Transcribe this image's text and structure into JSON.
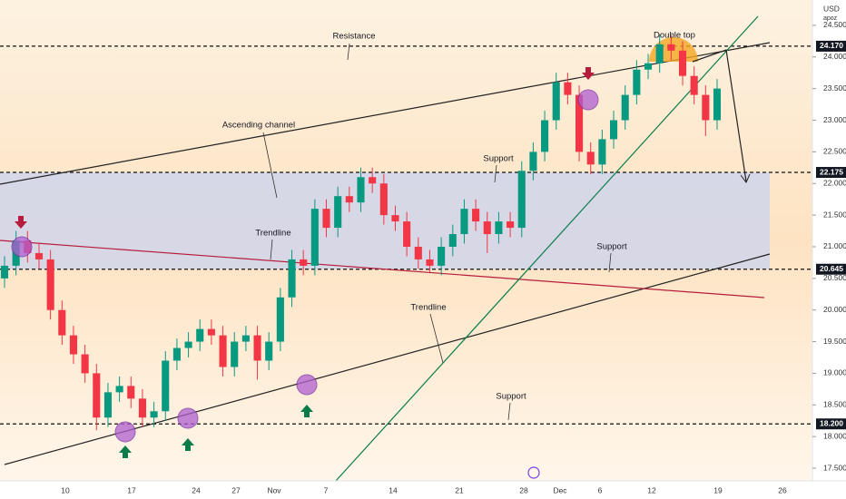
{
  "chart_data": {
    "type": "candlestick",
    "currency": "USD",
    "author": "apoz",
    "up_color": "#089981",
    "down_color": "#f23645",
    "ylim": [
      17.3,
      24.9
    ],
    "yticks": [
      {
        "value": 17.5,
        "label": "17.500"
      },
      {
        "value": 18,
        "label": "18.000"
      },
      {
        "value": 18.5,
        "label": "18.500"
      },
      {
        "value": 19,
        "label": "19.000"
      },
      {
        "value": 19.5,
        "label": "19.500"
      },
      {
        "value": 20,
        "label": "20.000"
      },
      {
        "value": 20.5,
        "label": "20.500"
      },
      {
        "value": 21,
        "label": "21.000"
      },
      {
        "value": 21.5,
        "label": "21.500"
      },
      {
        "value": 22,
        "label": "22.000"
      },
      {
        "value": 22.5,
        "label": "22.500"
      },
      {
        "value": 23,
        "label": "23.000"
      },
      {
        "value": 23.5,
        "label": "23.500"
      },
      {
        "value": 24,
        "label": "24.000"
      },
      {
        "value": 24.5,
        "label": "24.500"
      }
    ],
    "levels": [
      {
        "value": 24.17,
        "label": "24.170"
      },
      {
        "value": 22.175,
        "label": "22.175"
      },
      {
        "value": 20.645,
        "label": "20.645"
      },
      {
        "value": 18.2,
        "label": "18.200"
      }
    ],
    "xtick_labels": [
      "10",
      "17",
      "24",
      "27",
      "Nov",
      "7",
      "14",
      "21",
      "28",
      "Dec",
      "6",
      "12",
      "19",
      "26"
    ],
    "annotations": [
      "Resistance",
      "Double top",
      "Ascending channel",
      "Support",
      "Trendline",
      "Support",
      "Trendline",
      "Support"
    ],
    "candles": {
      "open": [
        20.5,
        20.7,
        21.1,
        20.9,
        20.8,
        20.0,
        19.6,
        19.3,
        19.0,
        18.3,
        18.7,
        18.8,
        18.6,
        18.3,
        18.4,
        19.2,
        19.4,
        19.5,
        19.7,
        19.6,
        19.1,
        19.5,
        19.6,
        19.2,
        19.5,
        20.2,
        20.8,
        20.7,
        21.6,
        21.3,
        21.8,
        21.7,
        22.1,
        22.0,
        21.5,
        21.4,
        21.0,
        20.8,
        20.7,
        21.0,
        21.2,
        21.6,
        21.4,
        21.2,
        21.4,
        21.3,
        22.2,
        22.5,
        23.0,
        23.6,
        23.4,
        22.5,
        22.3,
        22.7,
        23.0,
        23.4,
        23.8,
        23.9,
        24.2,
        24.1,
        23.7,
        23.4,
        23.0
      ],
      "high": [
        20.85,
        21.25,
        21.25,
        21.05,
        20.95,
        20.15,
        19.75,
        19.45,
        19.15,
        18.85,
        18.95,
        18.95,
        18.75,
        18.55,
        19.35,
        19.55,
        19.65,
        19.85,
        19.85,
        19.75,
        19.65,
        19.75,
        19.75,
        19.65,
        20.35,
        20.95,
        20.95,
        21.75,
        21.75,
        21.95,
        21.95,
        22.25,
        22.25,
        22.15,
        21.65,
        21.55,
        21.15,
        20.95,
        21.15,
        21.35,
        21.75,
        21.75,
        21.55,
        21.55,
        21.55,
        22.35,
        22.65,
        23.15,
        23.75,
        23.75,
        23.55,
        22.65,
        22.85,
        23.15,
        23.55,
        23.95,
        24.05,
        24.35,
        24.35,
        24.25,
        23.85,
        23.55,
        23.65
      ],
      "low": [
        20.35,
        20.55,
        20.75,
        20.65,
        19.85,
        19.45,
        19.15,
        18.85,
        18.1,
        18.15,
        18.55,
        18.45,
        18.15,
        18.15,
        18.25,
        19.05,
        19.25,
        19.35,
        19.45,
        18.95,
        18.95,
        19.35,
        18.9,
        19.05,
        19.35,
        20.05,
        20.55,
        20.55,
        21.15,
        21.15,
        21.55,
        21.55,
        21.85,
        21.35,
        21.25,
        20.85,
        20.65,
        20.6,
        20.55,
        20.85,
        21.05,
        21.25,
        20.9,
        21.05,
        21.15,
        21.15,
        22.05,
        22.35,
        22.85,
        23.25,
        22.35,
        22.15,
        22.15,
        22.55,
        22.85,
        23.25,
        23.65,
        23.75,
        23.95,
        23.55,
        23.25,
        22.75,
        22.85
      ],
      "close": [
        20.7,
        21.1,
        20.9,
        20.8,
        20.0,
        19.6,
        19.3,
        19.0,
        18.3,
        18.7,
        18.8,
        18.6,
        18.3,
        18.4,
        19.2,
        19.4,
        19.5,
        19.7,
        19.6,
        19.1,
        19.5,
        19.6,
        19.2,
        19.5,
        20.2,
        20.8,
        20.7,
        21.6,
        21.3,
        21.8,
        21.7,
        22.1,
        22.0,
        21.5,
        21.4,
        21.0,
        20.8,
        20.7,
        21.0,
        21.2,
        21.6,
        21.4,
        21.2,
        21.4,
        21.3,
        22.2,
        22.5,
        23.0,
        23.6,
        23.4,
        22.5,
        22.3,
        22.7,
        23.0,
        23.4,
        23.8,
        23.9,
        24.2,
        24.1,
        23.7,
        23.4,
        23.0,
        23.5
      ]
    }
  }
}
